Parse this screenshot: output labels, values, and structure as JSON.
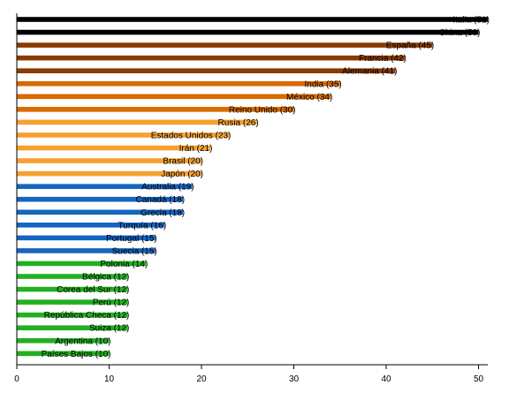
{
  "chart_data": {
    "type": "bar",
    "orientation": "horizontal",
    "title": "",
    "xlabel": "",
    "ylabel": "",
    "xlim": [
      0,
      52
    ],
    "xticks": [
      0,
      10,
      20,
      30,
      40,
      50
    ],
    "grid": false,
    "legend": "none",
    "categories": [
      "Italia",
      "China",
      "España",
      "Francia",
      "Alemania",
      "India",
      "México",
      "Reino Unido",
      "Rusia",
      "Estados Unidos",
      "Irán",
      "Brasil",
      "Japón",
      "Australia",
      "Canadá",
      "Grecia",
      "Turquía",
      "Portugal",
      "Suecia",
      "Polonia",
      "Bélgica",
      "Corea del Sur",
      "Perú",
      "República Checa",
      "Suiza",
      "Argentina",
      "Países Bajos"
    ],
    "values": [
      51,
      50,
      45,
      42,
      41,
      35,
      34,
      30,
      26,
      23,
      21,
      20,
      20,
      19,
      18,
      18,
      16,
      15,
      15,
      14,
      12,
      12,
      12,
      12,
      12,
      10,
      10
    ],
    "labels": [
      "Italia (51)",
      "China (50)",
      "España (45)",
      "Francia (42)",
      "Alemania (41)",
      "India (35)",
      "México (34)",
      "Reino Unido (30)",
      "Rusia (26)",
      "Estados Unidos (23)",
      "Irán (21)",
      "Brasil (20)",
      "Japón (20)",
      "Australia (19)",
      "Canadá (18)",
      "Grecia (18)",
      "Turquía (16)",
      "Portugal (15)",
      "Suecia (15)",
      "Polonia (14)",
      "Bélgica (12)",
      "Corea del Sur (12)",
      "Perú (12)",
      "República Checa (12)",
      "Suiza (12)",
      "Argentina (10)",
      "Países Bajos (10)"
    ],
    "colors": {
      "black": "#000000",
      "brown": "#8b3a00",
      "dark_orange": "#d96a00",
      "light_orange": "#f7a030",
      "blue": "#1565c0",
      "green": "#22b022"
    },
    "bar_colors": [
      "black",
      "black",
      "brown",
      "brown",
      "brown",
      "dark_orange",
      "dark_orange",
      "dark_orange",
      "light_orange",
      "light_orange",
      "light_orange",
      "light_orange",
      "light_orange",
      "blue",
      "blue",
      "blue",
      "blue",
      "blue",
      "blue",
      "green",
      "green",
      "green",
      "green",
      "green",
      "green",
      "green",
      "green"
    ]
  }
}
